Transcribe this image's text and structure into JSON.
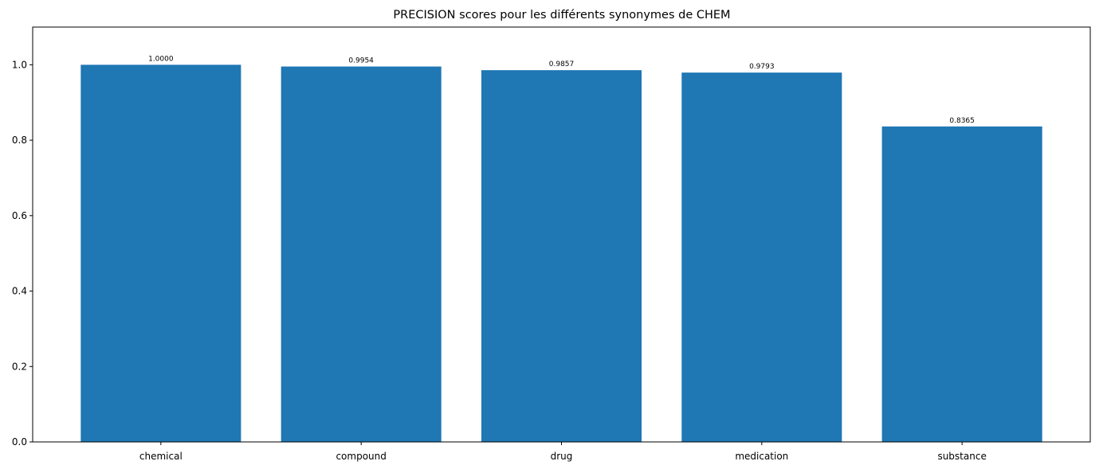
{
  "chart_data": {
    "type": "bar",
    "title": "PRECISION scores pour les différents synonymes de CHEM",
    "xlabel": "",
    "ylabel": "",
    "categories": [
      "chemical",
      "compound",
      "drug",
      "medication",
      "substance"
    ],
    "values": [
      1.0,
      0.9954,
      0.9857,
      0.9793,
      0.8365
    ],
    "value_labels": [
      "1.0000",
      "0.9954",
      "0.9857",
      "0.9793",
      "0.8365"
    ],
    "ylim": [
      0,
      1.1
    ],
    "yticks": [
      0.0,
      0.2,
      0.4,
      0.6,
      0.8,
      1.0
    ],
    "ytick_labels": [
      "0.0",
      "0.2",
      "0.4",
      "0.6",
      "0.8",
      "1.0"
    ],
    "bar_color": "#1f77b4",
    "grid": false,
    "legend": "none"
  }
}
